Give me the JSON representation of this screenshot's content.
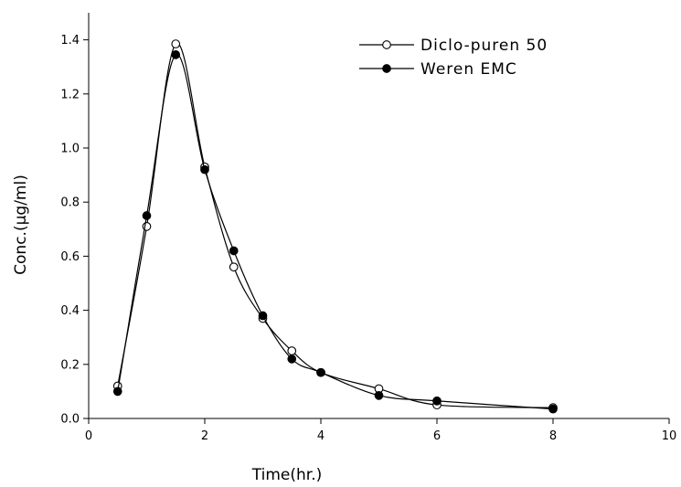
{
  "chart_data": {
    "type": "line",
    "title": "",
    "xlabel": "Time(hr.)",
    "ylabel": "Conc.(μg/ml)",
    "xlim": [
      0,
      10
    ],
    "ylim": [
      0,
      1.5
    ],
    "xticks": [
      0,
      2,
      4,
      6,
      8,
      10
    ],
    "yticks": [
      0.0,
      0.2,
      0.4,
      0.6,
      0.8,
      1.0,
      1.2,
      1.4
    ],
    "xtick_labels": [
      "0",
      "2",
      "4",
      "6",
      "8",
      "10"
    ],
    "ytick_labels": [
      "0.0",
      "0.2",
      "0.4",
      "0.6",
      "0.8",
      "1.0",
      "1.2",
      "1.4"
    ],
    "grid": false,
    "legend_position": "top-right",
    "series": [
      {
        "name": "Diclo-puren 50",
        "marker": "open-circle",
        "color": "#000000",
        "x": [
          0.5,
          1.0,
          1.5,
          2.0,
          2.5,
          3.0,
          3.5,
          4.0,
          5.0,
          6.0,
          8.0
        ],
        "y": [
          0.12,
          0.71,
          1.385,
          0.93,
          0.56,
          0.37,
          0.25,
          0.17,
          0.11,
          0.05,
          0.04
        ]
      },
      {
        "name": "Weren EMC",
        "marker": "filled-circle",
        "color": "#000000",
        "x": [
          0.5,
          1.0,
          1.5,
          2.0,
          2.5,
          3.0,
          3.5,
          4.0,
          5.0,
          6.0,
          8.0
        ],
        "y": [
          0.1,
          0.75,
          1.345,
          0.92,
          0.62,
          0.38,
          0.22,
          0.17,
          0.085,
          0.065,
          0.035
        ]
      }
    ]
  }
}
